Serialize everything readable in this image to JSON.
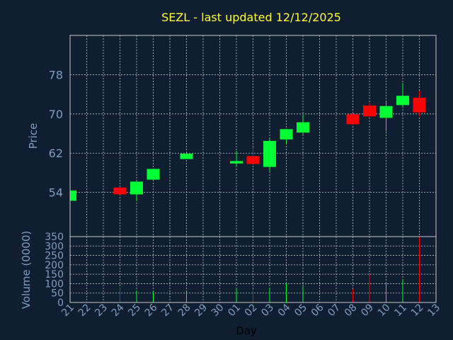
{
  "chart_data": {
    "type": "candlestick",
    "title": "SEZL - last updated 12/12/2025",
    "ylabel": "Price",
    "volume_ylabel": "Volume (0000)",
    "xlabel": "Day",
    "price_ylim": [
      45,
      86
    ],
    "price_yticks": [
      54,
      62,
      70,
      78
    ],
    "volume_ylim": [
      0,
      350
    ],
    "volume_yticks": [
      0,
      50,
      100,
      150,
      200,
      250,
      300,
      350
    ],
    "x_ticks": [
      "21",
      "22",
      "23",
      "24",
      "25",
      "26",
      "27",
      "28",
      "29",
      "30",
      "01",
      "02",
      "03",
      "04",
      "05",
      "06",
      "07",
      "08",
      "09",
      "10",
      "11",
      "12",
      "13"
    ],
    "colors": {
      "up": "#00ff33",
      "down": "#ff0000",
      "grid": "#c8c8c8",
      "background": "#0f1e30",
      "title": "#ffff33",
      "tick": "#7f9fc0"
    },
    "candles": [
      {
        "day": "21",
        "open": 52.3,
        "high": 54.4,
        "low": 52.3,
        "close": 54.4,
        "volume": 0
      },
      {
        "day": "24",
        "open": 55.0,
        "high": 55.0,
        "low": 53.5,
        "close": 53.6,
        "volume": 80
      },
      {
        "day": "25",
        "open": 53.6,
        "high": 56.2,
        "low": 52.2,
        "close": 56.2,
        "volume": 65
      },
      {
        "day": "26",
        "open": 56.6,
        "high": 58.8,
        "low": 56.6,
        "close": 58.8,
        "volume": 55
      },
      {
        "day": "28",
        "open": 60.8,
        "high": 61.9,
        "low": 60.8,
        "close": 61.9,
        "volume": 60
      },
      {
        "day": "01",
        "open": 59.9,
        "high": 62.5,
        "low": 59.3,
        "close": 60.4,
        "volume": 75
      },
      {
        "day": "02",
        "open": 61.4,
        "high": 63.2,
        "low": 59.8,
        "close": 59.8,
        "volume": 70
      },
      {
        "day": "03",
        "open": 59.2,
        "high": 65.0,
        "low": 58.3,
        "close": 64.5,
        "volume": 78
      },
      {
        "day": "04",
        "open": 64.8,
        "high": 67.0,
        "low": 64.0,
        "close": 66.9,
        "volume": 100
      },
      {
        "day": "05",
        "open": 66.2,
        "high": 69.8,
        "low": 65.8,
        "close": 68.3,
        "volume": 85
      },
      {
        "day": "08",
        "open": 69.9,
        "high": 70.2,
        "low": 67.8,
        "close": 67.9,
        "volume": 70
      },
      {
        "day": "09",
        "open": 71.7,
        "high": 72.3,
        "low": 69.4,
        "close": 69.5,
        "volume": 150
      },
      {
        "day": "10",
        "open": 69.2,
        "high": 72.5,
        "low": 66.5,
        "close": 71.6,
        "volume": 100
      },
      {
        "day": "11",
        "open": 71.8,
        "high": 76.3,
        "low": 71.5,
        "close": 73.7,
        "volume": 120
      },
      {
        "day": "12",
        "open": 73.3,
        "high": 74.7,
        "low": 69.5,
        "close": 70.3,
        "volume": 350
      }
    ]
  }
}
